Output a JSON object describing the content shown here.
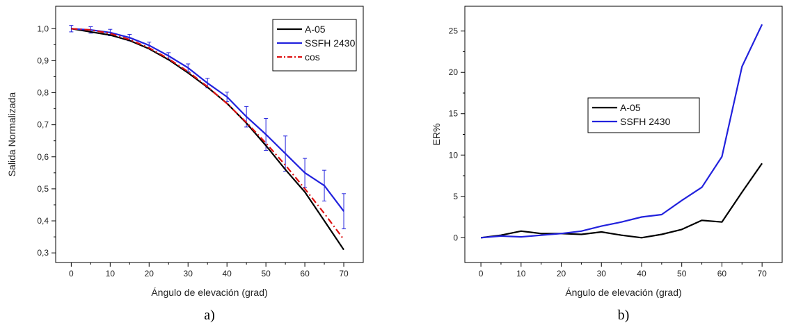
{
  "chart_data": [
    {
      "type": "line",
      "panel_label": "a)",
      "xlabel": "Ángulo de elevación (grad)",
      "ylabel": "Salida Normalizada",
      "xlim": [
        -4,
        75
      ],
      "ylim": [
        0.27,
        1.07
      ],
      "xticks": [
        0,
        10,
        20,
        30,
        40,
        50,
        60,
        70
      ],
      "yticks": [
        "0,3",
        "0,4",
        "0,5",
        "0,6",
        "0,7",
        "0,8",
        "0,9",
        "1,0"
      ],
      "ytick_values": [
        0.3,
        0.4,
        0.5,
        0.6,
        0.7,
        0.8,
        0.9,
        1.0
      ],
      "legend_position": "top-right",
      "x": [
        0,
        5,
        10,
        15,
        20,
        25,
        30,
        35,
        40,
        45,
        50,
        55,
        60,
        65,
        70
      ],
      "series": [
        {
          "name": "A-05",
          "color": "#000000",
          "dash": "solid",
          "values": [
            1.0,
            0.99,
            0.98,
            0.963,
            0.937,
            0.903,
            0.862,
            0.817,
            0.767,
            0.705,
            0.635,
            0.56,
            0.49,
            0.4,
            0.31
          ]
        },
        {
          "name": "SSFH 2430",
          "color": "#2222dd",
          "dash": "solid",
          "values": [
            1.0,
            0.996,
            0.988,
            0.972,
            0.948,
            0.915,
            0.878,
            0.83,
            0.787,
            0.725,
            0.67,
            0.61,
            0.55,
            0.51,
            0.43
          ],
          "error": [
            0.01,
            0.01,
            0.01,
            0.01,
            0.01,
            0.01,
            0.012,
            0.015,
            0.015,
            0.032,
            0.05,
            0.055,
            0.045,
            0.048,
            0.055
          ]
        },
        {
          "name": "cos",
          "color": "#dd1111",
          "dash": "dashdot",
          "values": [
            1.0,
            0.996,
            0.985,
            0.966,
            0.94,
            0.906,
            0.866,
            0.819,
            0.766,
            0.707,
            0.643,
            0.574,
            0.5,
            0.423,
            0.342
          ]
        }
      ]
    },
    {
      "type": "line",
      "panel_label": "b)",
      "xlabel": "Ángulo de elevación (grad)",
      "ylabel": "ER%",
      "xlim": [
        -4,
        75
      ],
      "ylim": [
        -3,
        28
      ],
      "xticks": [
        0,
        10,
        20,
        30,
        40,
        50,
        60,
        70
      ],
      "yticks": [
        "0",
        "5",
        "10",
        "15",
        "20",
        "25"
      ],
      "ytick_values": [
        0,
        5,
        10,
        15,
        20,
        25
      ],
      "legend_position": "center-left",
      "x": [
        0,
        5,
        10,
        15,
        20,
        25,
        30,
        35,
        40,
        45,
        50,
        55,
        60,
        65,
        70
      ],
      "series": [
        {
          "name": "A-05",
          "color": "#000000",
          "dash": "solid",
          "values": [
            0,
            0.3,
            0.8,
            0.5,
            0.5,
            0.4,
            0.7,
            0.3,
            0.0,
            0.4,
            1.0,
            2.1,
            1.9,
            5.5,
            9.0
          ]
        },
        {
          "name": "SSFH 2430",
          "color": "#2222dd",
          "dash": "solid",
          "values": [
            0,
            0.2,
            0.1,
            0.3,
            0.5,
            0.8,
            1.4,
            1.9,
            2.5,
            2.8,
            4.5,
            6.1,
            9.8,
            20.7,
            25.8
          ]
        }
      ]
    }
  ]
}
